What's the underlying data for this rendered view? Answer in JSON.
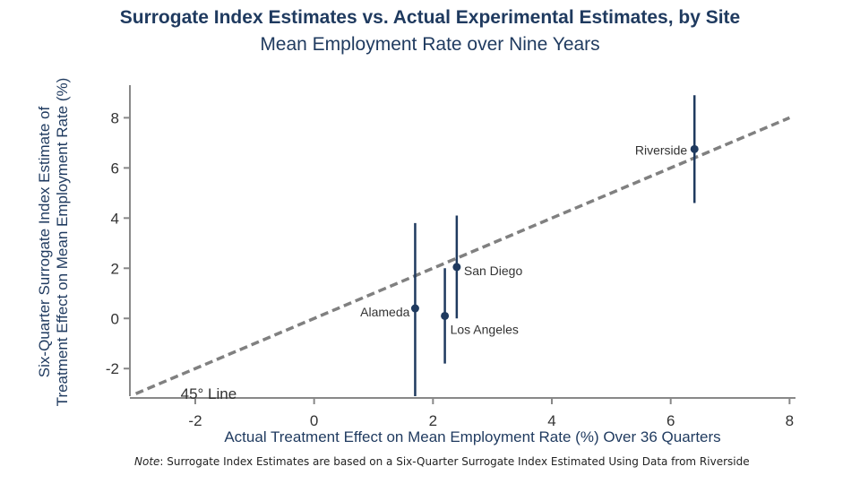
{
  "chart_data": {
    "type": "scatter",
    "title": "Surrogate Index Estimates vs. Actual Experimental Estimates, by Site",
    "subtitle": "Mean Employment Rate over Nine Years",
    "xlabel": "Actual Treatment Effect on Mean Employment Rate (%) Over 36 Quarters",
    "ylabel": [
      "Six-Quarter Surrogate Index Estimate of",
      "Treatment Effect on Mean Employment Rate (%)"
    ],
    "xlim": [
      -3.1,
      8.1
    ],
    "ylim": [
      -3.1,
      9.3
    ],
    "xticks": [
      -2,
      0,
      2,
      4,
      6,
      8
    ],
    "yticks": [
      -2,
      0,
      2,
      4,
      6,
      8
    ],
    "grid": false,
    "points": [
      {
        "label": "Alameda",
        "x": 1.7,
        "y": 0.4,
        "ylow": -3.1,
        "yhigh": 3.8
      },
      {
        "label": "Los Angeles",
        "x": 2.2,
        "y": 0.1,
        "ylow": -1.8,
        "yhigh": 2.0
      },
      {
        "label": "San Diego",
        "x": 2.4,
        "y": 2.05,
        "ylow": 0.0,
        "yhigh": 4.1
      },
      {
        "label": "Riverside",
        "x": 6.4,
        "y": 6.75,
        "ylow": 4.6,
        "yhigh": 8.9
      }
    ],
    "reference_line": {
      "label": "45° Line",
      "from": -3,
      "to": 8
    },
    "colors": {
      "points": "#1f3a5f",
      "reference": "#808080",
      "axis": "#888888"
    }
  },
  "note": {
    "prefix": "Note",
    "text": ": Surrogate Index Estimates are based on a Six-Quarter Surrogate Index Estimated Using Data from Riverside"
  }
}
